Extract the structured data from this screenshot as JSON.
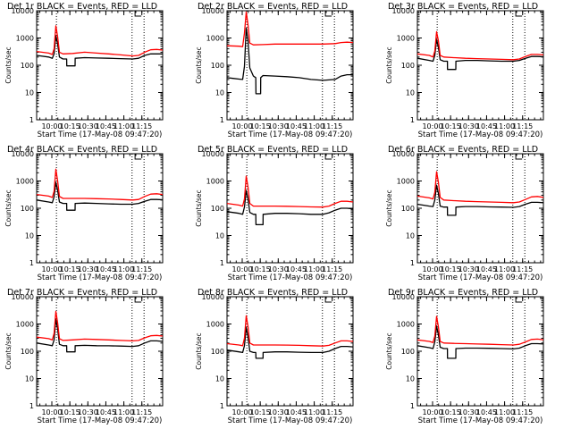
{
  "chart_data": {
    "type": "line",
    "yscale": "log",
    "ylim": [
      1,
      10000
    ],
    "ylabel": "Counts/sec",
    "xlabel": "Start Time (17-May-08 09:47:20)",
    "xlim_minutes": [
      0,
      105
    ],
    "x_tick_labels": [
      "10:00",
      "10:15",
      "10:30",
      "10:45",
      "11:00",
      "11:15"
    ],
    "x_tick_minutes": [
      12.67,
      27.67,
      42.67,
      57.67,
      72.67,
      87.67
    ],
    "y_tick_labels": [
      "1",
      "10",
      "100",
      "1000",
      "10000"
    ],
    "y_tick_values": [
      1,
      10,
      100,
      1000,
      10000
    ],
    "marker_lines_minutes": [
      16.5,
      79.5,
      89.5
    ],
    "legend_marker": "small bracket at top near 11:05",
    "panels": [
      {
        "title": "Det 1r BLACK = Events, RED = LLD",
        "series": [
          {
            "color": "#000000",
            "x": [
              0,
              10,
              13,
              14.5,
              16,
              17.5,
              19,
              22,
              25,
              25.1,
              32,
              32.1,
              40,
              50,
              60,
              70,
              80,
              85,
              90,
              95,
              100,
              105
            ],
            "y": [
              230,
              200,
              180,
              260,
              1200,
              600,
              200,
              170,
              170,
              95,
              95,
              180,
              190,
              185,
              180,
              175,
              170,
              180,
              230,
              260,
              260,
              260
            ]
          },
          {
            "color": "#ff0000",
            "x": [
              0,
              10,
              13,
              14.5,
              16,
              17.5,
              19,
              22,
              30,
              40,
              50,
              60,
              70,
              80,
              85,
              90,
              95,
              100,
              105
            ],
            "y": [
              320,
              280,
              250,
              400,
              2800,
              1100,
              300,
              260,
              270,
              300,
              280,
              260,
              240,
              220,
              230,
              300,
              370,
              380,
              360
            ]
          }
        ]
      },
      {
        "title": "Det 2r BLACK = Events, RED = LLD",
        "series": [
          {
            "color": "#000000",
            "x": [
              0,
              5,
              10,
              13,
              14.5,
              16,
              17.5,
              19,
              22,
              24,
              24.1,
              28,
              28.1,
              30,
              40,
              50,
              60,
              70,
              80,
              90,
              95,
              100,
              105
            ],
            "y": [
              35,
              33,
              31,
              30,
              90,
              2300,
              800,
              80,
              40,
              35,
              9,
              9,
              35,
              42,
              40,
              38,
              35,
              30,
              28,
              30,
              40,
              45,
              45
            ]
          },
          {
            "color": "#ff0000",
            "x": [
              0,
              10,
              13,
              14.5,
              16,
              17.5,
              19,
              22,
              30,
              40,
              50,
              60,
              70,
              80,
              90,
              95,
              100,
              105
            ],
            "y": [
              520,
              500,
              480,
              1500,
              9000,
              3000,
              650,
              560,
              570,
              600,
              600,
              600,
              600,
              600,
              620,
              680,
              700,
              680
            ]
          }
        ]
      },
      {
        "title": "Det 3r BLACK = Events, RED = LLD",
        "series": [
          {
            "color": "#000000",
            "x": [
              0,
              10,
              13,
              14.5,
              16,
              17.5,
              19,
              22,
              25,
              25.1,
              32,
              32.1,
              40,
              50,
              60,
              70,
              80,
              85,
              90,
              95,
              100,
              105
            ],
            "y": [
              180,
              150,
              140,
              230,
              900,
              450,
              160,
              140,
              140,
              70,
              70,
              140,
              150,
              150,
              145,
              140,
              140,
              150,
              180,
              210,
              210,
              205
            ]
          },
          {
            "color": "#ff0000",
            "x": [
              0,
              10,
              13,
              14.5,
              16,
              17.5,
              19,
              22,
              30,
              40,
              50,
              60,
              70,
              80,
              85,
              90,
              95,
              100,
              105
            ],
            "y": [
              260,
              230,
              200,
              330,
              1700,
              800,
              230,
              200,
              190,
              180,
              175,
              170,
              165,
              160,
              170,
              210,
              250,
              250,
              240
            ]
          }
        ]
      },
      {
        "title": "Det 4r BLACK = Events, RED = LLD",
        "series": [
          {
            "color": "#000000",
            "x": [
              0,
              10,
              13,
              14.5,
              16,
              17.5,
              19,
              22,
              25,
              25.1,
              32,
              32.1,
              40,
              50,
              60,
              70,
              80,
              85,
              90,
              95,
              100,
              105
            ],
            "y": [
              200,
              170,
              160,
              260,
              900,
              450,
              170,
              150,
              150,
              85,
              85,
              150,
              155,
              150,
              145,
              140,
              140,
              150,
              180,
              210,
              210,
              205
            ]
          },
          {
            "color": "#ff0000",
            "x": [
              0,
              10,
              13,
              14.5,
              16,
              17.5,
              19,
              22,
              30,
              40,
              50,
              60,
              70,
              80,
              85,
              90,
              95,
              100,
              105
            ],
            "y": [
              320,
              280,
              250,
              420,
              2700,
              1000,
              270,
              230,
              230,
              230,
              225,
              220,
              210,
              200,
              210,
              270,
              330,
              340,
              320
            ]
          }
        ]
      },
      {
        "title": "Det 5r BLACK = Events, RED = LLD",
        "series": [
          {
            "color": "#000000",
            "x": [
              0,
              10,
              13,
              14.5,
              16,
              17.5,
              19,
              22,
              24,
              24.1,
              30,
              30.1,
              40,
              50,
              60,
              70,
              80,
              85,
              90,
              95,
              100,
              105
            ],
            "y": [
              75,
              65,
              60,
              110,
              450,
              220,
              70,
              60,
              60,
              25,
              25,
              60,
              65,
              65,
              63,
              60,
              60,
              68,
              85,
              100,
              100,
              95
            ]
          },
          {
            "color": "#ff0000",
            "x": [
              0,
              10,
              13,
              14.5,
              16,
              17.5,
              19,
              22,
              30,
              40,
              50,
              60,
              70,
              80,
              85,
              90,
              95,
              100,
              105
            ],
            "y": [
              150,
              130,
              120,
              220,
              1500,
              600,
              150,
              120,
              120,
              120,
              118,
              115,
              112,
              110,
              120,
              150,
              180,
              180,
              170
            ]
          }
        ]
      },
      {
        "title": "Det 6r BLACK = Events, RED = LLD",
        "series": [
          {
            "color": "#000000",
            "x": [
              0,
              10,
              13,
              14.5,
              16,
              17.5,
              19,
              22,
              25,
              25.1,
              32,
              32.1,
              40,
              50,
              60,
              70,
              80,
              85,
              90,
              95,
              100,
              105
            ],
            "y": [
              140,
              120,
              115,
              200,
              700,
              350,
              120,
              110,
              110,
              55,
              55,
              110,
              115,
              115,
              112,
              110,
              108,
              115,
              140,
              165,
              165,
              160
            ]
          },
          {
            "color": "#ff0000",
            "x": [
              0,
              10,
              13,
              14.5,
              16,
              17.5,
              19,
              22,
              30,
              40,
              50,
              60,
              70,
              80,
              85,
              90,
              95,
              100,
              105
            ],
            "y": [
              280,
              240,
              220,
              380,
              2200,
              900,
              250,
              200,
              190,
              180,
              175,
              170,
              165,
              160,
              170,
              210,
              260,
              270,
              250
            ]
          }
        ]
      },
      {
        "title": "Det 7r BLACK = Events, RED = LLD",
        "series": [
          {
            "color": "#000000",
            "x": [
              0,
              10,
              13,
              14.5,
              16,
              17.5,
              19,
              22,
              25,
              25.1,
              32,
              32.1,
              40,
              50,
              60,
              70,
              80,
              85,
              90,
              95,
              100,
              105
            ],
            "y": [
              200,
              170,
              160,
              260,
              1500,
              650,
              180,
              160,
              160,
              95,
              95,
              160,
              165,
              160,
              158,
              155,
              150,
              160,
              200,
              240,
              240,
              230
            ]
          },
          {
            "color": "#ff0000",
            "x": [
              0,
              10,
              13,
              14.5,
              16,
              17.5,
              19,
              22,
              30,
              40,
              50,
              60,
              70,
              80,
              85,
              90,
              95,
              100,
              105
            ],
            "y": [
              330,
              290,
              260,
              450,
              2900,
              1100,
              290,
              250,
              260,
              280,
              270,
              260,
              250,
              240,
              250,
              310,
              370,
              380,
              360
            ]
          }
        ]
      },
      {
        "title": "Det 8r BLACK = Events, RED = LLD",
        "series": [
          {
            "color": "#000000",
            "x": [
              0,
              10,
              13,
              14.5,
              16,
              17.5,
              19,
              22,
              24,
              24.1,
              30,
              30.1,
              40,
              50,
              60,
              70,
              80,
              85,
              90,
              95,
              100,
              105
            ],
            "y": [
              110,
              95,
              90,
              160,
              750,
              330,
              100,
              90,
              90,
              55,
              55,
              90,
              95,
              95,
              92,
              90,
              90,
              100,
              125,
              150,
              150,
              145
            ]
          },
          {
            "color": "#ff0000",
            "x": [
              0,
              10,
              13,
              14.5,
              16,
              17.5,
              19,
              22,
              30,
              40,
              50,
              60,
              70,
              80,
              85,
              90,
              95,
              100,
              105
            ],
            "y": [
              190,
              170,
              160,
              300,
              2000,
              800,
              200,
              170,
              170,
              170,
              168,
              165,
              160,
              155,
              165,
              200,
              240,
              240,
              230
            ]
          }
        ]
      },
      {
        "title": "Det 9r BLACK = Events, RED = LLD",
        "series": [
          {
            "color": "#000000",
            "x": [
              0,
              10,
              13,
              14.5,
              16,
              17.5,
              19,
              22,
              25,
              25.1,
              32,
              32.1,
              40,
              50,
              60,
              70,
              80,
              85,
              90,
              95,
              100,
              105
            ],
            "y": [
              160,
              135,
              125,
              220,
              850,
              400,
              140,
              125,
              125,
              55,
              55,
              125,
              130,
              130,
              128,
              125,
              122,
              130,
              160,
              190,
              190,
              185
            ]
          },
          {
            "color": "#ff0000",
            "x": [
              0,
              10,
              13,
              14.5,
              16,
              17.5,
              19,
              22,
              30,
              40,
              50,
              60,
              70,
              80,
              85,
              90,
              95,
              100,
              105
            ],
            "y": [
              260,
              230,
              210,
              360,
              1900,
              800,
              230,
              200,
              195,
              190,
              185,
              180,
              175,
              170,
              180,
              220,
              270,
              280,
              265
            ]
          }
        ]
      }
    ]
  }
}
